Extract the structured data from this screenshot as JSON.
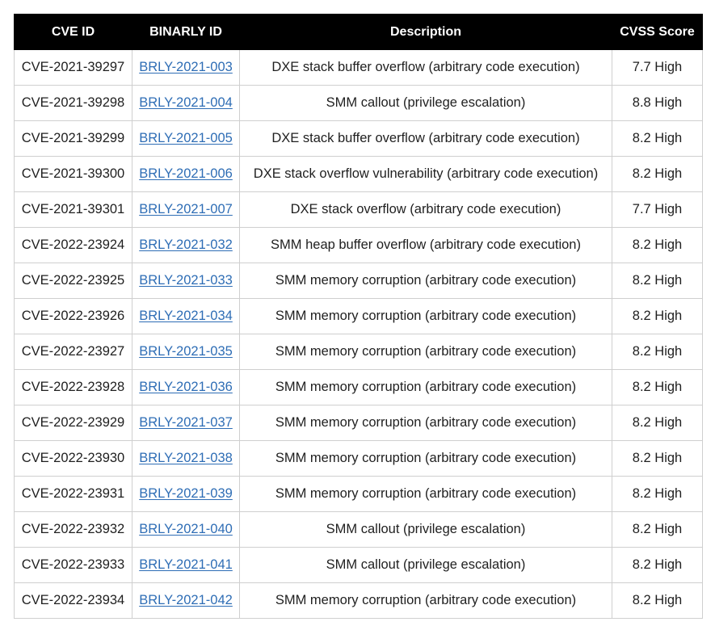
{
  "table": {
    "headers": [
      "CVE ID",
      "BINARLY ID",
      "Description",
      "CVSS Score"
    ],
    "rows": [
      {
        "cve": "CVE-2021-39297",
        "binarly": "BRLY-2021-003",
        "desc": "DXE stack buffer overflow (arbitrary code execution)",
        "score": "7.7 High"
      },
      {
        "cve": "CVE-2021-39298",
        "binarly": "BRLY-2021-004",
        "desc": "SMM callout (privilege escalation)",
        "score": "8.8 High"
      },
      {
        "cve": "CVE-2021-39299",
        "binarly": "BRLY-2021-005",
        "desc": "DXE stack buffer overflow (arbitrary code execution)",
        "score": "8.2 High"
      },
      {
        "cve": "CVE-2021-39300",
        "binarly": "BRLY-2021-006",
        "desc": "DXE stack overflow vulnerability (arbitrary code execution)",
        "score": "8.2 High"
      },
      {
        "cve": "CVE-2021-39301",
        "binarly": "BRLY-2021-007",
        "desc": "DXE stack overflow (arbitrary code execution)",
        "score": "7.7 High"
      },
      {
        "cve": "CVE-2022-23924",
        "binarly": "BRLY-2021-032",
        "desc": "SMM heap buffer overflow (arbitrary code execution)",
        "score": "8.2 High"
      },
      {
        "cve": "CVE-2022-23925",
        "binarly": "BRLY-2021-033",
        "desc": "SMM memory corruption (arbitrary code execution)",
        "score": "8.2 High"
      },
      {
        "cve": "CVE-2022-23926",
        "binarly": "BRLY-2021-034",
        "desc": "SMM memory corruption (arbitrary code execution)",
        "score": "8.2 High"
      },
      {
        "cve": "CVE-2022-23927",
        "binarly": "BRLY-2021-035",
        "desc": "SMM memory corruption (arbitrary code execution)",
        "score": "8.2 High"
      },
      {
        "cve": "CVE-2022-23928",
        "binarly": "BRLY-2021-036",
        "desc": "SMM memory corruption (arbitrary code execution)",
        "score": "8.2 High"
      },
      {
        "cve": "CVE-2022-23929",
        "binarly": "BRLY-2021-037",
        "desc": "SMM memory corruption (arbitrary code execution)",
        "score": "8.2 High"
      },
      {
        "cve": "CVE-2022-23930",
        "binarly": "BRLY-2021-038",
        "desc": "SMM memory corruption (arbitrary code execution)",
        "score": "8.2 High"
      },
      {
        "cve": "CVE-2022-23931",
        "binarly": "BRLY-2021-039",
        "desc": "SMM memory corruption (arbitrary code execution)",
        "score": "8.2 High"
      },
      {
        "cve": "CVE-2022-23932",
        "binarly": "BRLY-2021-040",
        "desc": "SMM callout (privilege escalation)",
        "score": "8.2 High"
      },
      {
        "cve": "CVE-2022-23933",
        "binarly": "BRLY-2021-041",
        "desc": "SMM callout (privilege escalation)",
        "score": "8.2 High"
      },
      {
        "cve": "CVE-2022-23934",
        "binarly": "BRLY-2021-042",
        "desc": "SMM memory corruption (arbitrary code execution)",
        "score": "8.2 High"
      }
    ]
  },
  "colors": {
    "header_bg": "#000000",
    "header_text": "#ffffff",
    "link": "#2e6db5",
    "border": "#cfcfcf"
  }
}
